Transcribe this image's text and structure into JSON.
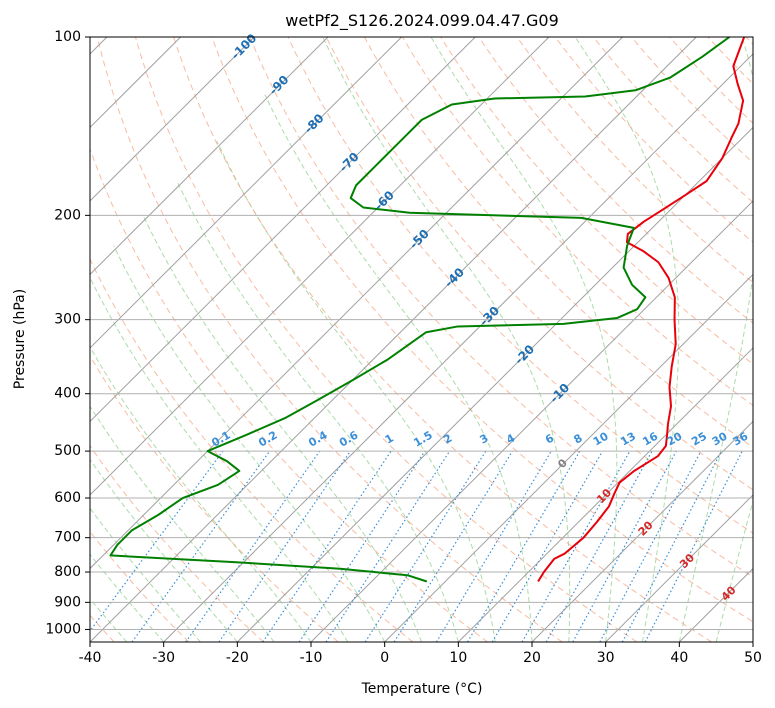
{
  "chart_data": {
    "type": "line",
    "title": "wetPf2_S126.2024.099.04.47.G09",
    "xlabel": "Temperature (°C)",
    "ylabel": "Pressure (hPa)",
    "xlim": [
      -40,
      50
    ],
    "ylim": [
      1050,
      100
    ],
    "y_scale": "log",
    "grid": true,
    "x_ticks": [
      -40,
      -30,
      -20,
      -10,
      0,
      10,
      20,
      30,
      40,
      50
    ],
    "y_ticks": [
      100,
      200,
      300,
      400,
      500,
      600,
      700,
      800,
      900,
      1000
    ],
    "skew_t": true,
    "colors": {
      "temperature": "#e8000b",
      "dewpoint": "#008000",
      "isotherm": "#a0a0a0",
      "dry_adiabat": "#f4a582",
      "moist_adiabat": "#8fcf8f",
      "mixing_ratio": "#3a8fd8",
      "isotherm_label": "#1f6fb4",
      "adiabat_label": "#d62728"
    },
    "series": [
      {
        "key": "temperature",
        "points": [
          {
            "p": 830,
            "t": 12.6
          },
          {
            "p": 800,
            "t": 12.1
          },
          {
            "p": 760,
            "t": 11.7
          },
          {
            "p": 745,
            "t": 12.4
          },
          {
            "p": 700,
            "t": 12.8
          },
          {
            "p": 660,
            "t": 12.5
          },
          {
            "p": 620,
            "t": 12.0
          },
          {
            "p": 590,
            "t": 11.0
          },
          {
            "p": 565,
            "t": 10.2
          },
          {
            "p": 540,
            "t": 10.6
          },
          {
            "p": 510,
            "t": 11.8
          },
          {
            "p": 490,
            "t": 11.5
          },
          {
            "p": 470,
            "t": 10.2
          },
          {
            "p": 450,
            "t": 8.8
          },
          {
            "p": 420,
            "t": 6.8
          },
          {
            "p": 390,
            "t": 4.0
          },
          {
            "p": 360,
            "t": 1.5
          },
          {
            "p": 330,
            "t": -1.0
          },
          {
            "p": 300,
            "t": -4.5
          },
          {
            "p": 275,
            "t": -7.5
          },
          {
            "p": 255,
            "t": -11.0
          },
          {
            "p": 240,
            "t": -14.5
          },
          {
            "p": 230,
            "t": -18.0
          },
          {
            "p": 222,
            "t": -21.5
          },
          {
            "p": 215,
            "t": -22.5
          },
          {
            "p": 205,
            "t": -22.0
          },
          {
            "p": 195,
            "t": -21.0
          },
          {
            "p": 185,
            "t": -20.0
          },
          {
            "p": 175,
            "t": -19.0
          },
          {
            "p": 160,
            "t": -20.0
          },
          {
            "p": 148,
            "t": -21.5
          },
          {
            "p": 140,
            "t": -22.5
          },
          {
            "p": 128,
            "t": -25.0
          },
          {
            "p": 120,
            "t": -28.0
          },
          {
            "p": 112,
            "t": -31.0
          },
          {
            "p": 100,
            "t": -33.5
          }
        ]
      },
      {
        "key": "dewpoint",
        "points": [
          {
            "p": 830,
            "t": -2.5
          },
          {
            "p": 810,
            "t": -6.0
          },
          {
            "p": 790,
            "t": -16.0
          },
          {
            "p": 770,
            "t": -31.0
          },
          {
            "p": 750,
            "t": -49.0
          },
          {
            "p": 720,
            "t": -49.5
          },
          {
            "p": 680,
            "t": -49.5
          },
          {
            "p": 640,
            "t": -48.0
          },
          {
            "p": 600,
            "t": -47.0
          },
          {
            "p": 570,
            "t": -44.0
          },
          {
            "p": 540,
            "t": -43.0
          },
          {
            "p": 520,
            "t": -46.0
          },
          {
            "p": 500,
            "t": -50.0
          },
          {
            "p": 470,
            "t": -47.0
          },
          {
            "p": 440,
            "t": -44.0
          },
          {
            "p": 410,
            "t": -42.0
          },
          {
            "p": 380,
            "t": -40.0
          },
          {
            "p": 350,
            "t": -38.0
          },
          {
            "p": 315,
            "t": -36.5
          },
          {
            "p": 308,
            "t": -33.0
          },
          {
            "p": 305,
            "t": -19.0
          },
          {
            "p": 298,
            "t": -12.5
          },
          {
            "p": 288,
            "t": -11.0
          },
          {
            "p": 275,
            "t": -11.5
          },
          {
            "p": 262,
            "t": -15.0
          },
          {
            "p": 245,
            "t": -18.5
          },
          {
            "p": 225,
            "t": -21.0
          },
          {
            "p": 210,
            "t": -22.5
          },
          {
            "p": 202,
            "t": -31.0
          },
          {
            "p": 198,
            "t": -55.0
          },
          {
            "p": 194,
            "t": -62.0
          },
          {
            "p": 187,
            "t": -65.0
          },
          {
            "p": 178,
            "t": -66.0
          },
          {
            "p": 165,
            "t": -66.0
          },
          {
            "p": 150,
            "t": -66.0
          },
          {
            "p": 138,
            "t": -66.0
          },
          {
            "p": 130,
            "t": -64.0
          },
          {
            "p": 127,
            "t": -59.0
          },
          {
            "p": 126,
            "t": -47.0
          },
          {
            "p": 123,
            "t": -41.0
          },
          {
            "p": 117,
            "t": -38.0
          },
          {
            "p": 108,
            "t": -36.5
          },
          {
            "p": 100,
            "t": -35.5
          }
        ]
      }
    ],
    "isotherm_labels": [
      "-100",
      "-90",
      "-80",
      "-70",
      "-60",
      "-50",
      "-40",
      "-30",
      "-20",
      "-10"
    ],
    "mixing_ratio_labels": [
      "0.1",
      "0.2",
      "0.4",
      "0.6",
      "1",
      "1.5",
      "2",
      "3",
      "4",
      "6",
      "8",
      "10",
      "13",
      "16",
      "20",
      "25",
      "30",
      "36"
    ],
    "mixing_ratio_values": [
      0.1,
      0.2,
      0.4,
      0.6,
      1,
      1.5,
      2,
      3,
      4,
      6,
      8,
      10,
      13,
      16,
      20,
      25,
      30,
      36
    ],
    "adiabat_labels": [
      "0",
      "10",
      "20",
      "30",
      "40"
    ]
  }
}
